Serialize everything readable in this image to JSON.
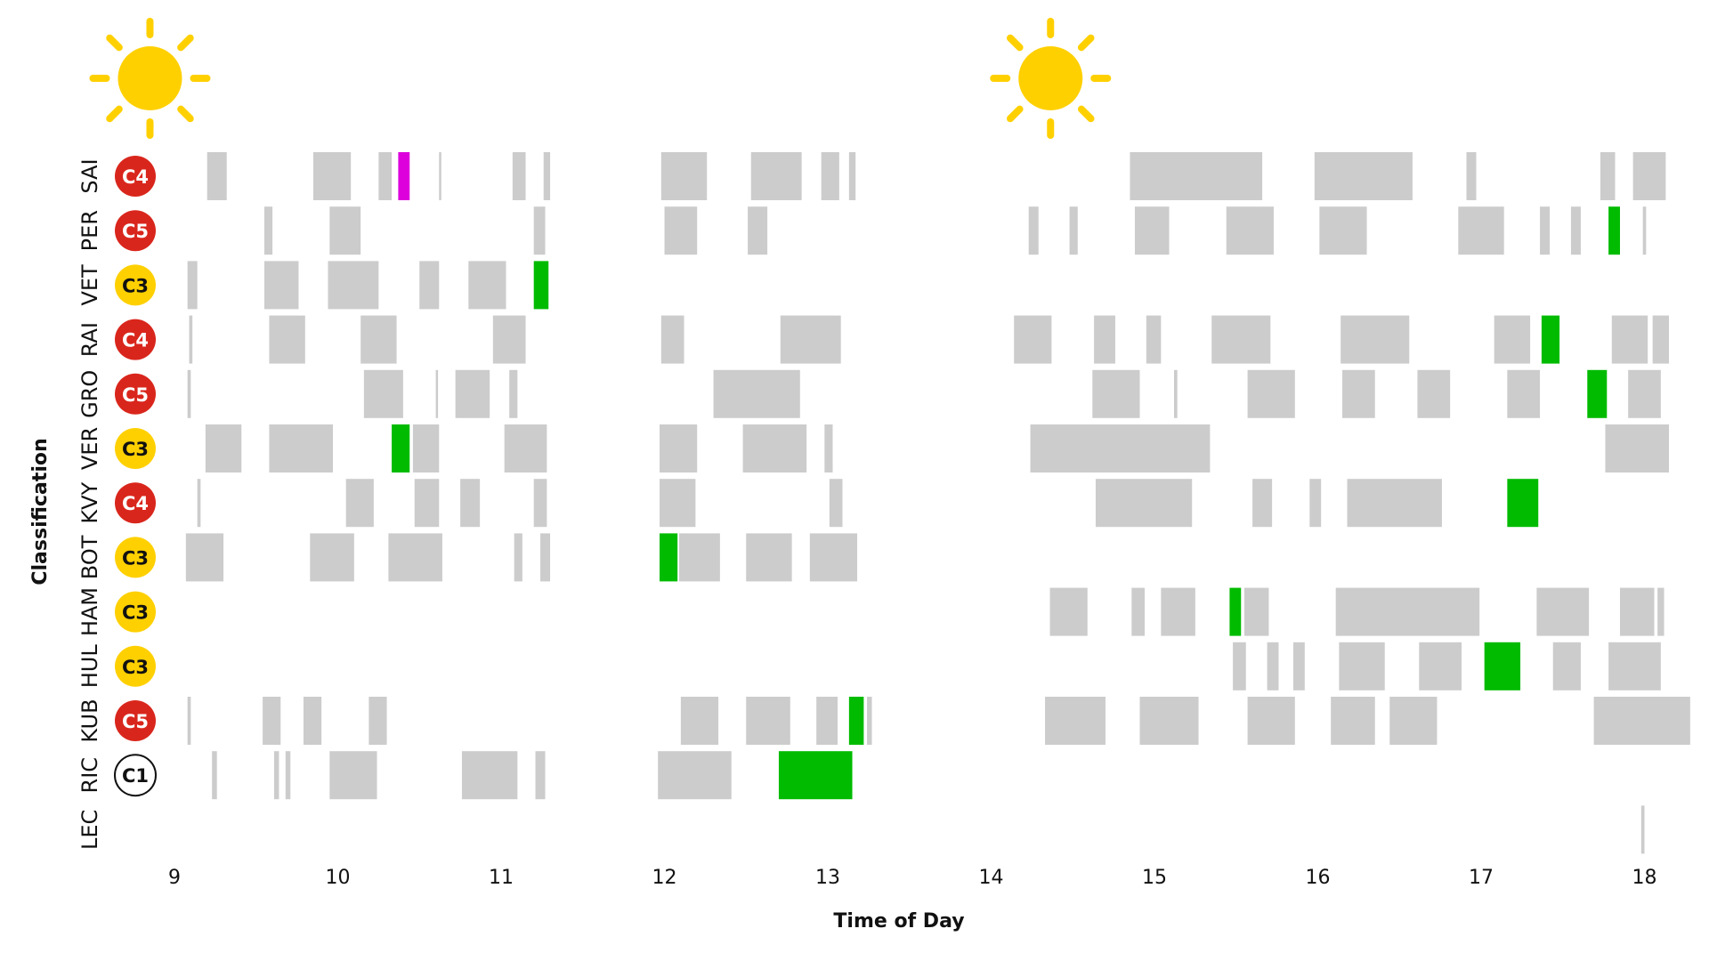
{
  "chart_data": {
    "type": "timeline",
    "xlabel": "Time of Day",
    "ylabel": "Classification",
    "xlim": [
      8.9,
      18.3
    ],
    "x_ticks": [
      "9",
      "10",
      "11",
      "12",
      "13",
      "14",
      "15",
      "16",
      "17",
      "18"
    ],
    "weather": [
      {
        "time": 8.85,
        "icon": "sun-icon"
      },
      {
        "time": 14.5,
        "icon": "sun-icon"
      }
    ],
    "colors": {
      "run": "#cccccc",
      "fastest": "#00bb00",
      "purple": "#dd00dd",
      "C1": "#ffffff",
      "C3": "#ffd000",
      "C4": "#d9261c",
      "C5": "#d9261c",
      "sun": "#ffd000"
    },
    "drivers": [
      {
        "name": "SAI",
        "compound": "C4",
        "runs": [
          [
            9.2,
            9.32,
            "g"
          ],
          [
            9.85,
            10.08,
            "g"
          ],
          [
            10.25,
            10.33,
            "g"
          ],
          [
            10.37,
            10.44,
            "p"
          ],
          [
            10.62,
            10.63,
            "g"
          ],
          [
            11.07,
            11.15,
            "g"
          ],
          [
            11.26,
            11.3,
            "g"
          ],
          [
            11.98,
            12.26,
            "g"
          ],
          [
            12.53,
            12.84,
            "g"
          ],
          [
            12.96,
            13.07,
            "g"
          ],
          [
            13.13,
            13.17,
            "g"
          ],
          [
            14.85,
            15.66,
            "g"
          ],
          [
            15.98,
            16.58,
            "g"
          ],
          [
            16.91,
            16.97,
            "g"
          ],
          [
            17.73,
            17.82,
            "g"
          ],
          [
            17.93,
            18.13,
            "g"
          ]
        ]
      },
      {
        "name": "PER",
        "compound": "C5",
        "runs": [
          [
            9.55,
            9.6,
            "g"
          ],
          [
            9.95,
            10.14,
            "g"
          ],
          [
            11.2,
            11.27,
            "g"
          ],
          [
            12.0,
            12.2,
            "g"
          ],
          [
            12.51,
            12.63,
            "g"
          ],
          [
            14.23,
            14.29,
            "g"
          ],
          [
            14.48,
            14.53,
            "g"
          ],
          [
            14.88,
            15.09,
            "g"
          ],
          [
            15.44,
            15.73,
            "g"
          ],
          [
            16.01,
            16.3,
            "g"
          ],
          [
            16.86,
            17.14,
            "g"
          ],
          [
            17.36,
            17.42,
            "g"
          ],
          [
            17.55,
            17.61,
            "g"
          ],
          [
            17.78,
            17.85,
            "f"
          ],
          [
            17.99,
            18.01,
            "g"
          ]
        ]
      },
      {
        "name": "VET",
        "compound": "C3",
        "runs": [
          [
            9.08,
            9.14,
            "g"
          ],
          [
            9.55,
            9.76,
            "g"
          ],
          [
            9.94,
            10.25,
            "g"
          ],
          [
            10.5,
            10.62,
            "g"
          ],
          [
            10.8,
            11.03,
            "g"
          ],
          [
            11.2,
            11.29,
            "f"
          ]
        ]
      },
      {
        "name": "RAI",
        "compound": "C4",
        "runs": [
          [
            9.09,
            9.11,
            "g"
          ],
          [
            9.58,
            9.8,
            "g"
          ],
          [
            10.14,
            10.36,
            "g"
          ],
          [
            10.95,
            11.15,
            "g"
          ],
          [
            11.98,
            12.12,
            "g"
          ],
          [
            12.71,
            13.08,
            "g"
          ],
          [
            14.14,
            14.37,
            "g"
          ],
          [
            14.63,
            14.76,
            "g"
          ],
          [
            14.95,
            15.04,
            "g"
          ],
          [
            15.35,
            15.71,
            "g"
          ],
          [
            16.14,
            16.56,
            "g"
          ],
          [
            17.08,
            17.3,
            "g"
          ],
          [
            17.37,
            17.48,
            "f"
          ],
          [
            17.8,
            18.02,
            "g"
          ],
          [
            18.05,
            18.15,
            "g"
          ]
        ]
      },
      {
        "name": "GRO",
        "compound": "C5",
        "runs": [
          [
            9.08,
            9.1,
            "g"
          ],
          [
            10.16,
            10.4,
            "g"
          ],
          [
            10.6,
            10.61,
            "g"
          ],
          [
            10.72,
            10.93,
            "g"
          ],
          [
            11.05,
            11.1,
            "g"
          ],
          [
            12.3,
            12.83,
            "g"
          ],
          [
            14.62,
            14.91,
            "g"
          ],
          [
            15.12,
            15.14,
            "g"
          ],
          [
            15.57,
            15.86,
            "g"
          ],
          [
            16.15,
            16.35,
            "g"
          ],
          [
            16.61,
            16.81,
            "g"
          ],
          [
            17.16,
            17.36,
            "g"
          ],
          [
            17.65,
            17.77,
            "f"
          ],
          [
            17.9,
            18.1,
            "g"
          ]
        ]
      },
      {
        "name": "VER",
        "compound": "C3",
        "runs": [
          [
            9.19,
            9.41,
            "g"
          ],
          [
            9.58,
            9.97,
            "g"
          ],
          [
            10.33,
            10.44,
            "f"
          ],
          [
            10.46,
            10.62,
            "g"
          ],
          [
            11.02,
            11.28,
            "g"
          ],
          [
            11.97,
            12.2,
            "g"
          ],
          [
            12.48,
            12.87,
            "g"
          ],
          [
            12.98,
            13.03,
            "g"
          ],
          [
            14.24,
            15.34,
            "g"
          ],
          [
            17.76,
            18.15,
            "g"
          ]
        ]
      },
      {
        "name": "KVY",
        "compound": "C4",
        "runs": [
          [
            9.14,
            9.16,
            "g"
          ],
          [
            10.05,
            10.22,
            "g"
          ],
          [
            10.47,
            10.62,
            "g"
          ],
          [
            10.75,
            10.87,
            "g"
          ],
          [
            11.2,
            11.28,
            "g"
          ],
          [
            11.97,
            12.19,
            "g"
          ],
          [
            13.01,
            13.09,
            "g"
          ],
          [
            14.64,
            15.23,
            "g"
          ],
          [
            15.6,
            15.72,
            "g"
          ],
          [
            15.95,
            16.02,
            "g"
          ],
          [
            16.18,
            16.76,
            "g"
          ],
          [
            17.16,
            17.35,
            "f"
          ]
        ]
      },
      {
        "name": "BOT",
        "compound": "C3",
        "runs": [
          [
            9.07,
            9.3,
            "g"
          ],
          [
            9.83,
            10.1,
            "g"
          ],
          [
            10.31,
            10.64,
            "g"
          ],
          [
            11.08,
            11.13,
            "g"
          ],
          [
            11.24,
            11.3,
            "g"
          ],
          [
            11.97,
            12.08,
            "f"
          ],
          [
            12.09,
            12.34,
            "g"
          ],
          [
            12.5,
            12.78,
            "g"
          ],
          [
            12.89,
            13.18,
            "g"
          ]
        ]
      },
      {
        "name": "HAM",
        "compound": "C3",
        "runs": [
          [
            14.36,
            14.59,
            "g"
          ],
          [
            14.86,
            14.94,
            "g"
          ],
          [
            15.04,
            15.25,
            "g"
          ],
          [
            15.46,
            15.53,
            "f"
          ],
          [
            15.55,
            15.7,
            "g"
          ],
          [
            16.11,
            16.99,
            "g"
          ],
          [
            17.34,
            17.66,
            "g"
          ],
          [
            17.85,
            18.06,
            "g"
          ],
          [
            18.08,
            18.12,
            "g"
          ]
        ]
      },
      {
        "name": "HUL",
        "compound": "C3",
        "runs": [
          [
            15.48,
            15.56,
            "g"
          ],
          [
            15.69,
            15.76,
            "g"
          ],
          [
            15.85,
            15.92,
            "g"
          ],
          [
            16.13,
            16.41,
            "g"
          ],
          [
            16.62,
            16.88,
            "g"
          ],
          [
            17.02,
            17.24,
            "f"
          ],
          [
            17.44,
            17.61,
            "g"
          ],
          [
            17.78,
            18.1,
            "g"
          ]
        ]
      },
      {
        "name": "KUB",
        "compound": "C5",
        "runs": [
          [
            9.08,
            9.1,
            "g"
          ],
          [
            9.54,
            9.65,
            "g"
          ],
          [
            9.79,
            9.9,
            "g"
          ],
          [
            10.19,
            10.3,
            "g"
          ],
          [
            12.1,
            12.33,
            "g"
          ],
          [
            12.5,
            12.77,
            "g"
          ],
          [
            12.93,
            13.06,
            "g"
          ],
          [
            13.13,
            13.22,
            "f"
          ],
          [
            13.24,
            13.27,
            "g"
          ],
          [
            14.33,
            14.7,
            "g"
          ],
          [
            14.91,
            15.27,
            "g"
          ],
          [
            15.57,
            15.86,
            "g"
          ],
          [
            16.08,
            16.35,
            "g"
          ],
          [
            16.44,
            16.73,
            "g"
          ],
          [
            17.69,
            18.28,
            "g"
          ]
        ]
      },
      {
        "name": "RIC",
        "compound": "C1",
        "runs": [
          [
            9.23,
            9.26,
            "g"
          ],
          [
            9.61,
            9.64,
            "g"
          ],
          [
            9.68,
            9.71,
            "g"
          ],
          [
            9.95,
            10.24,
            "g"
          ],
          [
            10.76,
            11.1,
            "g"
          ],
          [
            11.21,
            11.27,
            "g"
          ],
          [
            11.96,
            12.41,
            "g"
          ],
          [
            12.7,
            13.15,
            "f"
          ]
        ]
      },
      {
        "name": "LEC",
        "compound": "",
        "runs": [
          [
            17.98,
            18.0,
            "g"
          ]
        ]
      }
    ]
  }
}
